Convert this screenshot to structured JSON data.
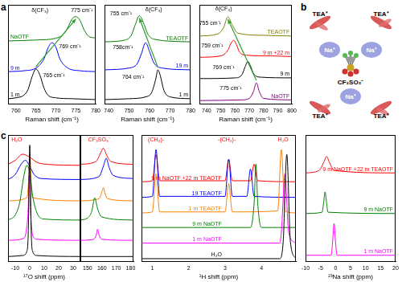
{
  "panel_labels": [
    "a",
    "b",
    "c"
  ],
  "chart_data": [
    {
      "type": "line",
      "x_label": "Raman shift (cm⁻¹)",
      "xlim": [
        758,
        780
      ],
      "xticks": [
        760,
        765,
        770,
        775,
        780
      ],
      "ylim": [
        0,
        11
      ],
      "tick_labels": "x",
      "grid": false,
      "series": [
        {
          "name": "1 m",
          "color": "#000000",
          "x": [
            758,
            760,
            762,
            763,
            764,
            765,
            766,
            767,
            768,
            770,
            774,
            780
          ],
          "values": [
            0.6,
            0.7,
            1.0,
            1.6,
            3.0,
            3.9,
            3.2,
            1.8,
            1.0,
            0.7,
            0.6,
            0.5
          ]
        },
        {
          "name": "9 m",
          "color": "#0000ff",
          "x": [
            758,
            762,
            765,
            767,
            768,
            769,
            770,
            771,
            773,
            776,
            780
          ],
          "values": [
            3.6,
            3.7,
            4.0,
            5.0,
            6.2,
            6.8,
            6.3,
            5.0,
            4.0,
            3.7,
            3.6
          ]
        },
        {
          "name": "NaOTF",
          "color": "#008000",
          "x": [
            758,
            765,
            770,
            772,
            773,
            774,
            775,
            776,
            777,
            778,
            780
          ],
          "values": [
            7.0,
            7.1,
            7.3,
            7.8,
            8.5,
            9.4,
            9.7,
            9.3,
            8.3,
            7.6,
            7.3
          ]
        }
      ],
      "annotations": [
        {
          "text": "δ(CF₃)",
          "x": 766,
          "y": 10.4
        },
        {
          "text": "775 cm⁻¹",
          "x": 776.5,
          "y": 10.4
        },
        {
          "text": "769 cm⁻¹",
          "x": 773.5,
          "y": 6.4
        },
        {
          "text": "765 cm⁻¹",
          "x": 769.5,
          "y": 3.2
        }
      ]
    },
    {
      "type": "line",
      "x_label": "Raman shift (cm⁻¹)",
      "xlim": [
        738,
        780
      ],
      "xticks": [
        740,
        750,
        760,
        770,
        780
      ],
      "ylim": [
        0,
        11
      ],
      "tick_labels": "x",
      "grid": false,
      "series": [
        {
          "name": "1 m",
          "color": "#000000",
          "x": [
            738,
            750,
            758,
            761,
            763,
            764,
            765,
            767,
            770,
            780
          ],
          "values": [
            0.5,
            0.6,
            0.8,
            1.3,
            2.8,
            3.8,
            3.3,
            1.5,
            0.8,
            0.6
          ]
        },
        {
          "name": "19 m",
          "color": "#0000ff",
          "x": [
            738,
            750,
            754,
            756,
            758,
            760,
            762,
            766,
            780
          ],
          "values": [
            3.8,
            4.0,
            4.5,
            5.6,
            6.8,
            5.8,
            4.6,
            4.0,
            3.8
          ]
        },
        {
          "name": "TEAOTF",
          "color": "#008000",
          "x": [
            738,
            748,
            751,
            753,
            755,
            757,
            759,
            762,
            780
          ],
          "values": [
            6.9,
            7.1,
            7.6,
            8.8,
            9.8,
            9.0,
            7.8,
            7.2,
            6.9
          ]
        }
      ],
      "annotations": [
        {
          "text": "δ(CF₃)",
          "x": 762,
          "y": 10.5
        },
        {
          "text": "755 cm⁻¹",
          "x": 746,
          "y": 10.0
        },
        {
          "text": "758cm⁻¹",
          "x": 747,
          "y": 6.3
        },
        {
          "text": "764 cm⁻¹",
          "x": 752,
          "y": 3.0
        }
      ]
    },
    {
      "type": "line",
      "x_label": "Raman shift (cm⁻¹)",
      "xlim": [
        735,
        800
      ],
      "xticks": [
        740,
        750,
        760,
        770,
        780,
        790,
        800
      ],
      "ylim": [
        0,
        14
      ],
      "tick_labels": "x",
      "grid": false,
      "series": [
        {
          "name": "NaOTF",
          "color": "#800080",
          "x": [
            735,
            765,
            770,
            773,
            775,
            777,
            780,
            800
          ],
          "values": [
            0.5,
            0.6,
            0.8,
            1.8,
            3.0,
            1.8,
            0.8,
            0.6
          ]
        },
        {
          "name": "9 m",
          "color": "#000000",
          "x": [
            735,
            760,
            765,
            767,
            769,
            771,
            773,
            778,
            800
          ],
          "values": [
            3.6,
            3.7,
            4.2,
            5.2,
            6.0,
            5.3,
            4.3,
            3.8,
            3.7
          ]
        },
        {
          "name": "9 m +22 m",
          "color": "#ff0000",
          "x": [
            735,
            750,
            755,
            757,
            759,
            761,
            763,
            768,
            785,
            800
          ],
          "values": [
            6.6,
            6.8,
            7.6,
            8.5,
            9.0,
            8.4,
            7.4,
            6.9,
            6.8,
            6.7
          ]
        },
        {
          "name": "TEAOTF",
          "color": "#808000",
          "x": [
            735,
            748,
            752,
            755,
            758,
            762,
            780,
            800
          ],
          "values": [
            9.6,
            9.9,
            10.8,
            12.3,
            11.2,
            10.0,
            9.7,
            9.6
          ]
        }
      ],
      "annotations": [
        {
          "text": "δ(CF₃)",
          "x": 752,
          "y": 13.4
        },
        {
          "text": "755 cm⁻¹",
          "x": 742.5,
          "y": 11.4
        },
        {
          "text": "759 cm⁻¹",
          "x": 744,
          "y": 8.2
        },
        {
          "text": "769 cm⁻¹",
          "x": 752,
          "y": 5.2
        },
        {
          "text": "775 cm⁻¹",
          "x": 757,
          "y": 2.2
        }
      ]
    },
    {
      "type": "line",
      "x_label": "¹⁷O shift (ppm)",
      "xlim": [
        -15,
        35
      ],
      "xticks": [
        -10,
        0,
        10,
        20,
        30
      ],
      "ylim": [
        0,
        12.5
      ],
      "tick_labels": "x",
      "grid": false,
      "series": [
        {
          "color": "#000000",
          "x": [
            -15,
            -5,
            -2,
            -1,
            0,
            1,
            2,
            5,
            35
          ],
          "values": [
            0.5,
            0.6,
            1.0,
            3.0,
            11.5,
            3.0,
            1.0,
            0.6,
            0.5
          ]
        },
        {
          "color": "#ff00ff",
          "x": [
            -15,
            -4,
            -2,
            -1,
            -0.5,
            0.5,
            2,
            5,
            35
          ],
          "values": [
            2.1,
            2.3,
            3.5,
            5.5,
            8.5,
            5.0,
            2.6,
            2.2,
            2.1
          ]
        },
        {
          "color": "#008000",
          "x": [
            -15,
            -10,
            -7,
            -4,
            -2,
            0,
            2,
            5,
            10,
            35
          ],
          "values": [
            4.1,
            4.6,
            5.8,
            8.5,
            9.5,
            8.8,
            6.5,
            4.8,
            4.2,
            4.1
          ]
        },
        {
          "color": "#ff8000",
          "x": [
            -15,
            -2,
            -1,
            0,
            1,
            2,
            35
          ],
          "values": [
            6.0,
            6.3,
            7.5,
            10.5,
            7.5,
            6.3,
            6.0
          ]
        },
        {
          "color": "#0000ff",
          "x": [
            -15,
            -10,
            -6,
            -3,
            0,
            3,
            8,
            35
          ],
          "values": [
            8.1,
            8.6,
            9.6,
            10.0,
            9.4,
            8.6,
            8.2,
            8.1
          ]
        },
        {
          "color": "#ff0000",
          "x": [
            -15,
            -10,
            -5,
            0,
            5,
            12,
            35
          ],
          "values": [
            9.6,
            10.0,
            10.6,
            10.3,
            9.8,
            9.6,
            9.5
          ]
        }
      ],
      "annotations": [
        {
          "text": "H₂O",
          "x": -9,
          "y": 12.0,
          "color": "#ff0000"
        }
      ]
    },
    {
      "type": "line",
      "xlim": [
        145,
        182
      ],
      "xticks": [
        150,
        160,
        170,
        180
      ],
      "ylim": [
        0,
        12.5
      ],
      "tick_labels": "x",
      "grid": false,
      "series": [
        {
          "color": "#000000",
          "x": [
            145,
            182
          ],
          "values": [
            0.5,
            0.5
          ]
        },
        {
          "color": "#ff00ff",
          "x": [
            145,
            154,
            156,
            157,
            158,
            160,
            182
          ],
          "values": [
            2.1,
            2.2,
            2.6,
            3.2,
            2.6,
            2.2,
            2.1
          ]
        },
        {
          "color": "#008000",
          "x": [
            145,
            150,
            153,
            155,
            157,
            160,
            182
          ],
          "values": [
            4.1,
            4.3,
            5.0,
            6.3,
            5.2,
            4.4,
            4.1
          ]
        },
        {
          "color": "#ff8000",
          "x": [
            145,
            158,
            160,
            161,
            162,
            164,
            182
          ],
          "values": [
            6.0,
            6.2,
            6.9,
            7.3,
            6.8,
            6.2,
            6.0
          ]
        },
        {
          "color": "#0000ff",
          "x": [
            145,
            158,
            161,
            163,
            165,
            168,
            182
          ],
          "values": [
            8.1,
            8.4,
            9.4,
            10.2,
            9.3,
            8.5,
            8.2
          ]
        },
        {
          "color": "#ff0000",
          "x": [
            145,
            156,
            159,
            161,
            163,
            166,
            182
          ],
          "values": [
            9.6,
            9.9,
            10.7,
            11.2,
            10.6,
            9.9,
            9.6
          ]
        }
      ],
      "annotations": [
        {
          "text": "CF₃SO₃⁻",
          "x": 158,
          "y": 12.0,
          "color": "#ff0000"
        }
      ]
    },
    {
      "type": "line",
      "x_label": "¹H shift (ppm)",
      "xlim": [
        0.7,
        4.95
      ],
      "xticks": [
        1,
        2,
        3,
        4
      ],
      "ylim": [
        0,
        13
      ],
      "tick_labels": "x",
      "grid": false,
      "series": [
        {
          "name": "H₂O",
          "color": "#000000",
          "x": [
            0.7,
            4.5,
            4.6,
            4.7,
            4.8,
            4.95
          ],
          "values": [
            0.3,
            0.3,
            2.0,
            11.0,
            2.0,
            0.3
          ]
        },
        {
          "name": "1 m NaOTF",
          "color": "#ff00ff",
          "x": [
            0.7,
            4.5,
            4.55,
            4.65,
            4.75,
            4.95
          ],
          "values": [
            1.9,
            1.9,
            3.0,
            9.0,
            3.0,
            1.9
          ]
        },
        {
          "name": "9 m NaOTF",
          "color": "#008000",
          "x": [
            0.7,
            3.7,
            3.8,
            3.85,
            3.9,
            4.0,
            4.95
          ],
          "values": [
            3.5,
            3.5,
            6.0,
            10.0,
            6.0,
            3.5,
            3.5
          ]
        },
        {
          "name": "1 m TEAOTF",
          "color": "#ff8000",
          "x": [
            0.7,
            1.0,
            1.1,
            1.2,
            3.0,
            3.1,
            3.2,
            4.45,
            4.55,
            4.65,
            4.95
          ],
          "values": [
            5.0,
            5.1,
            9.0,
            5.1,
            5.1,
            8.0,
            5.1,
            5.2,
            11.5,
            5.2,
            5.0
          ]
        },
        {
          "name": "19 TEAOTF",
          "color": "#0000ff",
          "x": [
            0.7,
            1.0,
            1.1,
            1.2,
            3.0,
            3.1,
            3.2,
            3.6,
            3.7,
            3.8,
            4.95
          ],
          "values": [
            6.6,
            6.7,
            11.5,
            6.7,
            6.7,
            10.5,
            6.7,
            6.7,
            9.5,
            6.7,
            6.6
          ]
        },
        {
          "name": "9 m NaOTF +22 m TEAOTF",
          "color": "#ff0000",
          "x": [
            0.7,
            1.0,
            1.1,
            1.2,
            3.0,
            3.1,
            3.2,
            3.7,
            3.8,
            3.9,
            4.95
          ],
          "values": [
            8.2,
            8.3,
            11.0,
            8.3,
            8.3,
            10.5,
            8.3,
            8.3,
            10.0,
            8.3,
            8.2
          ]
        }
      ],
      "annotations": [
        {
          "text": "(CH₃)-",
          "x": 1.1,
          "y": 12.5,
          "color": "#ff0000"
        },
        {
          "text": "-(CH₂)-",
          "x": 3.05,
          "y": 12.5,
          "color": "#ff0000"
        },
        {
          "text": "H₂O",
          "x": 4.6,
          "y": 12.5,
          "color": "#ff0000"
        }
      ]
    },
    {
      "type": "line",
      "x_label": "²³Na shift (ppm)",
      "xlim": [
        -10,
        20
      ],
      "xticks": [
        -10,
        -5,
        0,
        5,
        10,
        15,
        20
      ],
      "ylim": [
        0,
        10
      ],
      "tick_labels": "x",
      "grid": false,
      "series": [
        {
          "name": "1 m NaOTF",
          "color": "#ff00ff",
          "x": [
            -10,
            -1.5,
            -1,
            -0.5,
            0,
            0.5,
            20
          ],
          "values": [
            0.5,
            0.5,
            1.5,
            3.0,
            1.5,
            0.5,
            0.5
          ]
        },
        {
          "name": "9 m NaOTF",
          "color": "#008000",
          "x": [
            -10,
            -4.5,
            -4,
            -3.5,
            -3,
            -2.5,
            20
          ],
          "values": [
            3.8,
            3.9,
            4.6,
            5.5,
            4.6,
            3.9,
            3.8
          ]
        },
        {
          "name": "9 m NaOTF +22 m TEAOTF",
          "color": "#ff0000",
          "x": [
            -10,
            -5.5,
            -4,
            -3,
            -2,
            -0.5,
            20
          ],
          "values": [
            7.0,
            7.2,
            7.8,
            8.3,
            7.8,
            7.2,
            7.0
          ]
        }
      ],
      "annotations": []
    }
  ],
  "diagram": {
    "center_label": "CF₃SO₃⁻",
    "inner_labels": [
      "Na⁺",
      "Na⁺",
      "Na⁺"
    ],
    "outer_labels": [
      "TEA⁺",
      "TEA⁺",
      "TEA⁺",
      "TEA⁺"
    ]
  }
}
